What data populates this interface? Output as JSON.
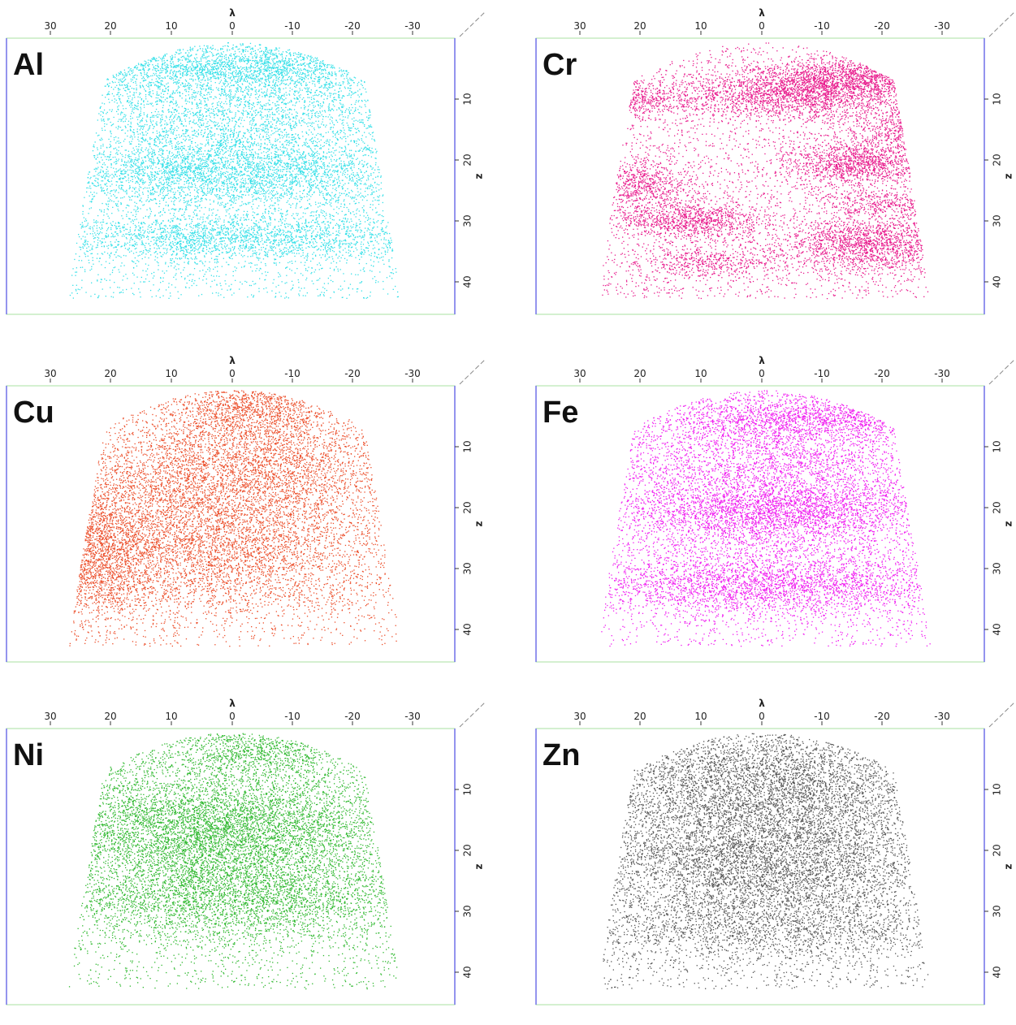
{
  "chart_data": [
    {
      "type": "scatter",
      "title": "Al",
      "xlabel": "λ",
      "ylabel": "z",
      "x_ticks": [
        "30",
        "20",
        "10",
        "0",
        "-10",
        "-20",
        "-30"
      ],
      "y_ticks": [
        "10",
        "20",
        "30",
        "40"
      ],
      "xlim": [
        30,
        -30
      ],
      "ylim": [
        0,
        45
      ],
      "color": "#35e0e8",
      "grid": false
    },
    {
      "type": "scatter",
      "title": "Cr",
      "xlabel": "λ",
      "ylabel": "z",
      "x_ticks": [
        "30",
        "20",
        "10",
        "0",
        "-10",
        "-20",
        "-30"
      ],
      "y_ticks": [
        "10",
        "20",
        "30",
        "40"
      ],
      "xlim": [
        30,
        -30
      ],
      "ylim": [
        0,
        45
      ],
      "color": "#e8198c",
      "grid": false
    },
    {
      "type": "scatter",
      "title": "Cu",
      "xlabel": "λ",
      "ylabel": "z",
      "x_ticks": [
        "30",
        "20",
        "10",
        "0",
        "-10",
        "-20",
        "-30"
      ],
      "y_ticks": [
        "10",
        "20",
        "30",
        "40"
      ],
      "xlim": [
        30,
        -30
      ],
      "ylim": [
        0,
        45
      ],
      "color": "#ec4e2a",
      "grid": false
    },
    {
      "type": "scatter",
      "title": "Fe",
      "xlabel": "λ",
      "ylabel": "z",
      "x_ticks": [
        "30",
        "20",
        "10",
        "0",
        "-10",
        "-20",
        "-30"
      ],
      "y_ticks": [
        "10",
        "20",
        "30",
        "40"
      ],
      "xlim": [
        30,
        -30
      ],
      "ylim": [
        0,
        45
      ],
      "color": "#f01cf0",
      "grid": false
    },
    {
      "type": "scatter",
      "title": "Ni",
      "xlabel": "λ",
      "ylabel": "z",
      "x_ticks": [
        "30",
        "20",
        "10",
        "0",
        "-10",
        "-20",
        "-30"
      ],
      "y_ticks": [
        "10",
        "20",
        "30",
        "40"
      ],
      "xlim": [
        30,
        -30
      ],
      "ylim": [
        0,
        45
      ],
      "color": "#2eb82e",
      "grid": false
    },
    {
      "type": "scatter",
      "title": "Zn",
      "xlabel": "λ",
      "ylabel": "z",
      "x_ticks": [
        "30",
        "20",
        "10",
        "0",
        "-10",
        "-20",
        "-30"
      ],
      "y_ticks": [
        "10",
        "20",
        "30",
        "40"
      ],
      "xlim": [
        30,
        -30
      ],
      "ylim": [
        0,
        45
      ],
      "color": "#555555",
      "grid": false
    }
  ]
}
